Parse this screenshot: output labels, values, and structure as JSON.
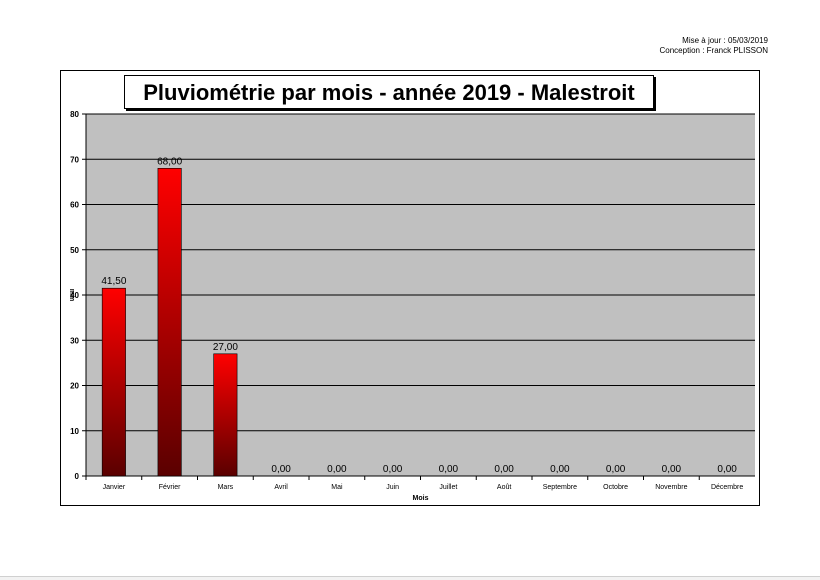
{
  "meta": {
    "updated": "Mise à jour : 05/03/2019",
    "author": "Conception : Franck PLISSON"
  },
  "chart_data": {
    "type": "bar",
    "title": "Pluviométrie par mois - année 2019 - Malestroit",
    "xlabel": "Mois",
    "ylabel": "mm",
    "ylim": [
      0,
      80
    ],
    "yticks": [
      0,
      10,
      20,
      30,
      40,
      50,
      60,
      70,
      80
    ],
    "categories": [
      "Janvier",
      "Février",
      "Mars",
      "Avril",
      "Mai",
      "Juin",
      "Juillet",
      "Août",
      "Septembre",
      "Octobre",
      "Novembre",
      "Décembre"
    ],
    "values": [
      41.5,
      68,
      27,
      0,
      0,
      0,
      0,
      0,
      0,
      0,
      0,
      0
    ],
    "value_labels": [
      "41,50",
      "68,00",
      "27,00",
      "0,00",
      "0,00",
      "0,00",
      "0,00",
      "0,00",
      "0,00",
      "0,00",
      "0,00",
      "0,00"
    ],
    "grid": true,
    "colors": {
      "plot_bg": "#c0c0c0",
      "bar_top": "#ff0000",
      "bar_bottom": "#5a0000",
      "grid": "#000000"
    }
  }
}
